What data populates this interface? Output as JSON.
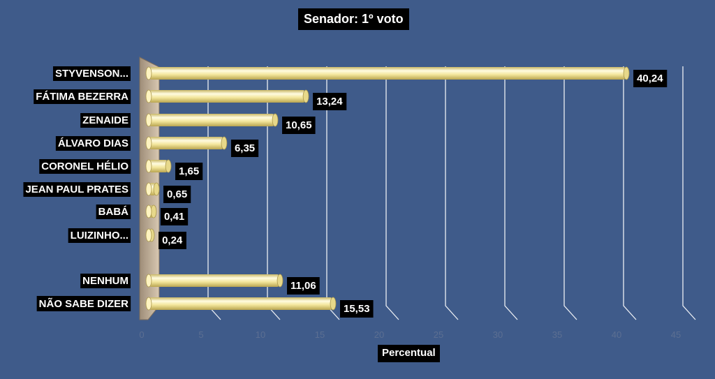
{
  "chart_data": {
    "type": "bar",
    "orientation": "horizontal",
    "title": "Senador: 1º voto",
    "xlabel": "Percentual",
    "ylabel": "",
    "categories": [
      "STYVENSON...",
      "FÁTIMA BEZERRA",
      "ZENAIDE",
      "ÁLVARO DIAS",
      "CORONEL HÉLIO",
      "JEAN PAUL PRATES",
      "BABÁ",
      "LUIZINHO...",
      "NENHUM",
      "NÃO SABE DIZER"
    ],
    "values": [
      40.24,
      13.24,
      10.65,
      6.35,
      1.65,
      0.65,
      0.41,
      0.24,
      11.06,
      15.53
    ],
    "value_labels": [
      "40,24",
      "13,24",
      "10,65",
      "6,35",
      "1,65",
      "0,65",
      "0,41",
      "0,24",
      "11,06",
      "15,53"
    ],
    "xlim": [
      0,
      45
    ],
    "xticks": [
      "0",
      "5",
      "10",
      "15",
      "20",
      "25",
      "30",
      "35",
      "40",
      "45"
    ],
    "grid": true,
    "colors": {
      "background": "#3f5b8a",
      "bar": "#f3e69c",
      "bar_light": "#fffbe0",
      "bar_dark": "#c8b460",
      "wall": "#c9b8a2",
      "label_bg": "#000000",
      "label_text": "#ffffff",
      "gridline": "#ffffff"
    }
  }
}
